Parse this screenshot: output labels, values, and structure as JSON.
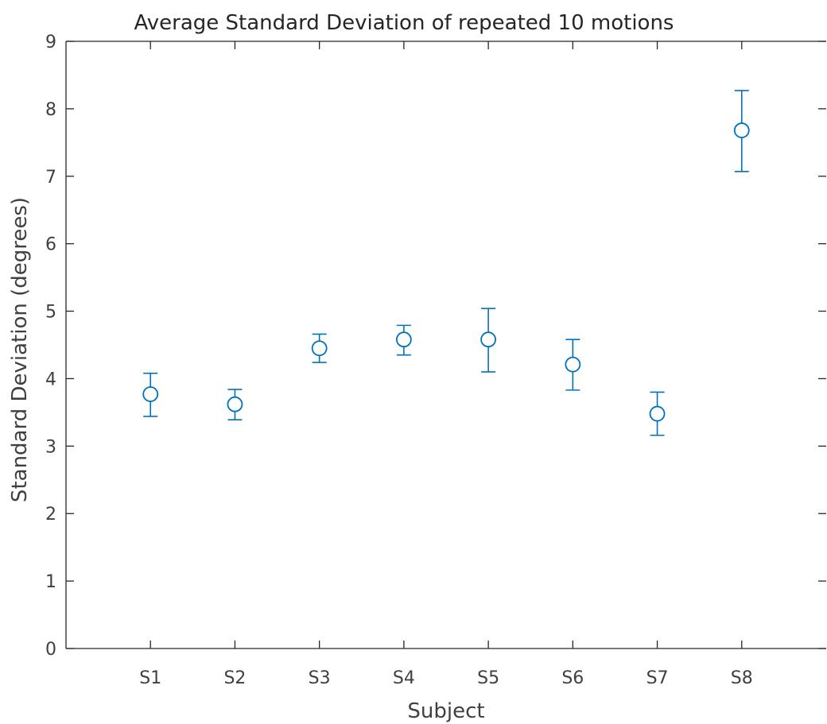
{
  "chart_data": {
    "type": "scatter",
    "title": "Average Standard Deviation of repeated 10 motions",
    "xlabel": "Subject",
    "ylabel": "Standard Deviation (degrees)",
    "categories": [
      "S1",
      "S2",
      "S3",
      "S4",
      "S5",
      "S6",
      "S7",
      "S8"
    ],
    "values": [
      3.77,
      3.62,
      4.45,
      4.58,
      4.58,
      4.21,
      3.48,
      7.68
    ],
    "error_lower": [
      3.44,
      3.39,
      4.24,
      4.35,
      4.1,
      3.83,
      3.16,
      7.07
    ],
    "error_upper": [
      4.08,
      3.84,
      4.66,
      4.79,
      5.04,
      4.58,
      3.8,
      8.27
    ],
    "yticks": [
      "0",
      "1",
      "2",
      "3",
      "4",
      "5",
      "6",
      "7",
      "8",
      "9"
    ],
    "ylim": [
      0,
      9
    ],
    "xlim": [
      0,
      9
    ],
    "grid": false,
    "legend": "none",
    "marker": "circle",
    "color": "#0072BD"
  }
}
